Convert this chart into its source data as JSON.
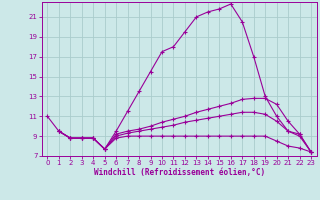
{
  "xlabel": "Windchill (Refroidissement éolien,°C)",
  "background_color": "#cce8e8",
  "grid_color": "#aacccc",
  "line_color": "#990099",
  "xlim": [
    -0.5,
    23.5
  ],
  "ylim": [
    7,
    22.5
  ],
  "xticks": [
    0,
    1,
    2,
    3,
    4,
    5,
    6,
    7,
    8,
    9,
    10,
    11,
    12,
    13,
    14,
    15,
    16,
    17,
    18,
    19,
    20,
    21,
    22,
    23
  ],
  "yticks": [
    7,
    9,
    11,
    13,
    15,
    17,
    19,
    21
  ],
  "line1_x": [
    0,
    1,
    2,
    3,
    4,
    5,
    6,
    7,
    8,
    9,
    10,
    11,
    12,
    13,
    14,
    15,
    16,
    17,
    18,
    19,
    20,
    21,
    22,
    23
  ],
  "line1_y": [
    11.0,
    9.5,
    8.8,
    8.8,
    8.8,
    7.7,
    9.5,
    11.5,
    13.5,
    15.5,
    17.5,
    18.0,
    19.5,
    21.0,
    21.5,
    21.8,
    22.3,
    20.5,
    17.0,
    13.0,
    11.0,
    9.5,
    9.2,
    7.4
  ],
  "line2_x": [
    1,
    2,
    3,
    4,
    5,
    6,
    7,
    8,
    9,
    10,
    11,
    12,
    13,
    14,
    15,
    16,
    17,
    18,
    19,
    20,
    21,
    22,
    23
  ],
  "line2_y": [
    9.5,
    8.8,
    8.8,
    8.8,
    7.7,
    9.2,
    9.5,
    9.7,
    10.0,
    10.4,
    10.7,
    11.0,
    11.4,
    11.7,
    12.0,
    12.3,
    12.7,
    12.8,
    12.8,
    12.2,
    10.5,
    9.2,
    7.4
  ],
  "line3_x": [
    1,
    2,
    3,
    4,
    5,
    6,
    7,
    8,
    9,
    10,
    11,
    12,
    13,
    14,
    15,
    16,
    17,
    18,
    19,
    20,
    21,
    22,
    23
  ],
  "line3_y": [
    9.5,
    8.8,
    8.8,
    8.8,
    7.7,
    9.0,
    9.3,
    9.5,
    9.7,
    9.9,
    10.1,
    10.4,
    10.6,
    10.8,
    11.0,
    11.2,
    11.4,
    11.4,
    11.2,
    10.5,
    9.5,
    9.0,
    7.4
  ],
  "line4_x": [
    1,
    2,
    3,
    4,
    5,
    6,
    7,
    8,
    9,
    10,
    11,
    12,
    13,
    14,
    15,
    16,
    17,
    18,
    19,
    20,
    21,
    22,
    23
  ],
  "line4_y": [
    9.5,
    8.8,
    8.8,
    8.8,
    7.7,
    8.8,
    9.0,
    9.0,
    9.0,
    9.0,
    9.0,
    9.0,
    9.0,
    9.0,
    9.0,
    9.0,
    9.0,
    9.0,
    9.0,
    8.5,
    8.0,
    7.8,
    7.4
  ]
}
